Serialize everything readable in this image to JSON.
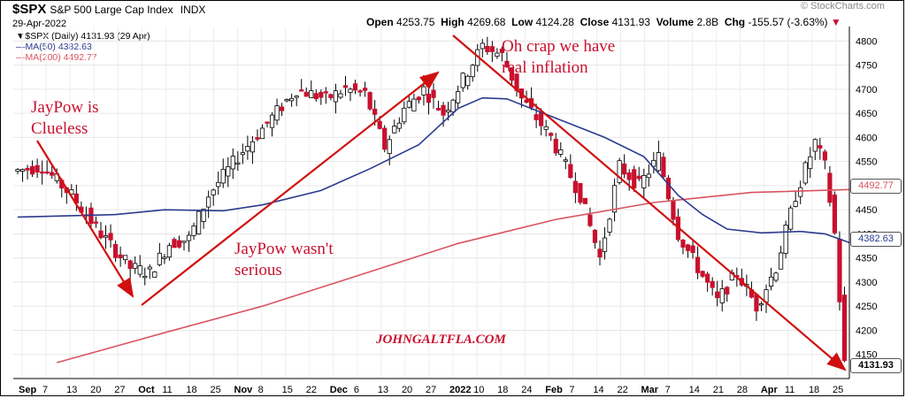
{
  "header": {
    "symbol": "$SPX",
    "description": "S&P 500 Large Cap Index",
    "exchange": "INDX",
    "date": "29-Apr-2022",
    "source": "© StockCharts.com",
    "open_label": "Open",
    "open": "4253.75",
    "high_label": "High",
    "high": "4269.68",
    "low_label": "Low",
    "low": "4124.28",
    "close_label": "Close",
    "close": "4131.93",
    "volume_label": "Volume",
    "volume": "2.8B",
    "chg_label": "Chg",
    "chg": "-155.57 (-3.63%)"
  },
  "legend": {
    "price": "$SPX (Daily) 4131.93 (29 Apr)",
    "ma50": "MA(50) 4382.63",
    "ma200": "MA(200) 4492.77"
  },
  "annotations": {
    "a1_line1": "JayPow is",
    "a1_line2": "Clueless",
    "a2_line1": "JayPow wasn't",
    "a2_line2": "serious",
    "a3_line1": "Oh crap we have",
    "a3_line2": "real inflation",
    "watermark": "JOHNGALTFLA.COM"
  },
  "tags": {
    "ma200": "4492.77",
    "ma50": "4382.63",
    "close": "4131.93"
  },
  "colors": {
    "up": "#ffffff",
    "down": "#c8102e",
    "ma50": "#2b3a8f",
    "ma200": "#d9535f",
    "arrow": "#d01010"
  },
  "chart_data": {
    "type": "candlestick",
    "title": "$SPX S&P 500 Large Cap Index",
    "ylim": [
      4100,
      4830
    ],
    "y_ticks": [
      4150,
      4200,
      4250,
      4300,
      4350,
      4400,
      4450,
      4500,
      4550,
      4600,
      4650,
      4700,
      4750,
      4800
    ],
    "x_labels": [
      "Sep",
      "7",
      "13",
      "20",
      "27",
      "Oct",
      "11",
      "18",
      "25",
      "Nov",
      "8",
      "15",
      "22",
      "Dec",
      "6",
      "13",
      "20",
      "27",
      "2022",
      "10",
      "18",
      "24",
      "Feb",
      "7",
      "14",
      "22",
      "Mar",
      "7",
      "14",
      "21",
      "28",
      "Apr",
      "11",
      "18",
      "25"
    ],
    "last": {
      "open": 4253.75,
      "high": 4269.68,
      "low": 4124.28,
      "close": 4131.93
    },
    "ma50_points": [
      [
        0,
        4435
      ],
      [
        20,
        4440
      ],
      [
        30,
        4450
      ],
      [
        42,
        4448
      ],
      [
        50,
        4460
      ],
      [
        62,
        4490
      ],
      [
        72,
        4535
      ],
      [
        82,
        4585
      ],
      [
        90,
        4660
      ],
      [
        95,
        4682
      ],
      [
        100,
        4680
      ],
      [
        110,
        4640
      ],
      [
        120,
        4600
      ],
      [
        128,
        4560
      ],
      [
        135,
        4480
      ],
      [
        140,
        4440
      ],
      [
        145,
        4410
      ],
      [
        152,
        4402
      ],
      [
        160,
        4405
      ],
      [
        165,
        4400
      ],
      [
        170,
        4382
      ]
    ],
    "ma200_points": [
      [
        8,
        4133
      ],
      [
        30,
        4195
      ],
      [
        50,
        4250
      ],
      [
        70,
        4315
      ],
      [
        90,
        4380
      ],
      [
        110,
        4430
      ],
      [
        130,
        4465
      ],
      [
        150,
        4486
      ],
      [
        170,
        4492
      ]
    ]
  }
}
